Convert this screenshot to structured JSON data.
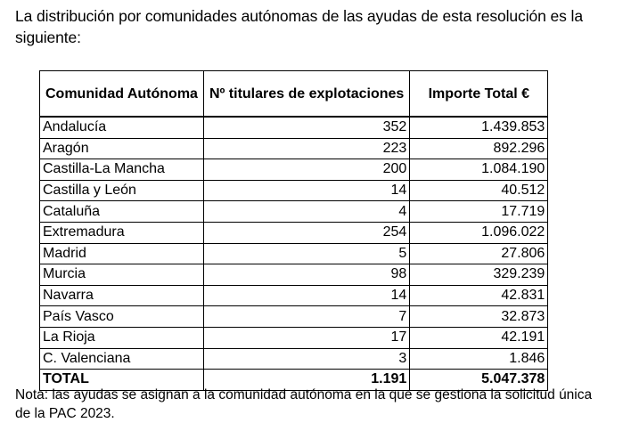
{
  "intro_text": "La distribución por comunidades autónomas de las ayudas de esta resolución es la siguiente:",
  "table": {
    "headers": {
      "comunidad": "Comunidad Autónoma",
      "titulares": "Nº titulares de explotaciones",
      "importe": "Importe Total €"
    },
    "rows": [
      {
        "comunidad": "Andalucía",
        "titulares": "352",
        "importe": "1.439.853"
      },
      {
        "comunidad": "Aragón",
        "titulares": "223",
        "importe": "892.296"
      },
      {
        "comunidad": "Castilla-La Mancha",
        "titulares": "200",
        "importe": "1.084.190"
      },
      {
        "comunidad": "Castilla y León",
        "titulares": "14",
        "importe": "40.512"
      },
      {
        "comunidad": "Cataluña",
        "titulares": "4",
        "importe": "17.719"
      },
      {
        "comunidad": "Extremadura",
        "titulares": "254",
        "importe": "1.096.022"
      },
      {
        "comunidad": "Madrid",
        "titulares": "5",
        "importe": "27.806"
      },
      {
        "comunidad": "Murcia",
        "titulares": "98",
        "importe": "329.239"
      },
      {
        "comunidad": "Navarra",
        "titulares": "14",
        "importe": "42.831"
      },
      {
        "comunidad": "País Vasco",
        "titulares": "7",
        "importe": "32.873"
      },
      {
        "comunidad": "La Rioja",
        "titulares": "17",
        "importe": "42.191"
      },
      {
        "comunidad": "C. Valenciana",
        "titulares": "3",
        "importe": "1.846"
      }
    ],
    "total": {
      "comunidad": "TOTAL",
      "titulares": "1.191",
      "importe": "5.047.378"
    }
  },
  "note_text": "Nota: las ayudas se asignan a la comunidad autónoma en la que se gestiona la solicitud única de la PAC 2023."
}
